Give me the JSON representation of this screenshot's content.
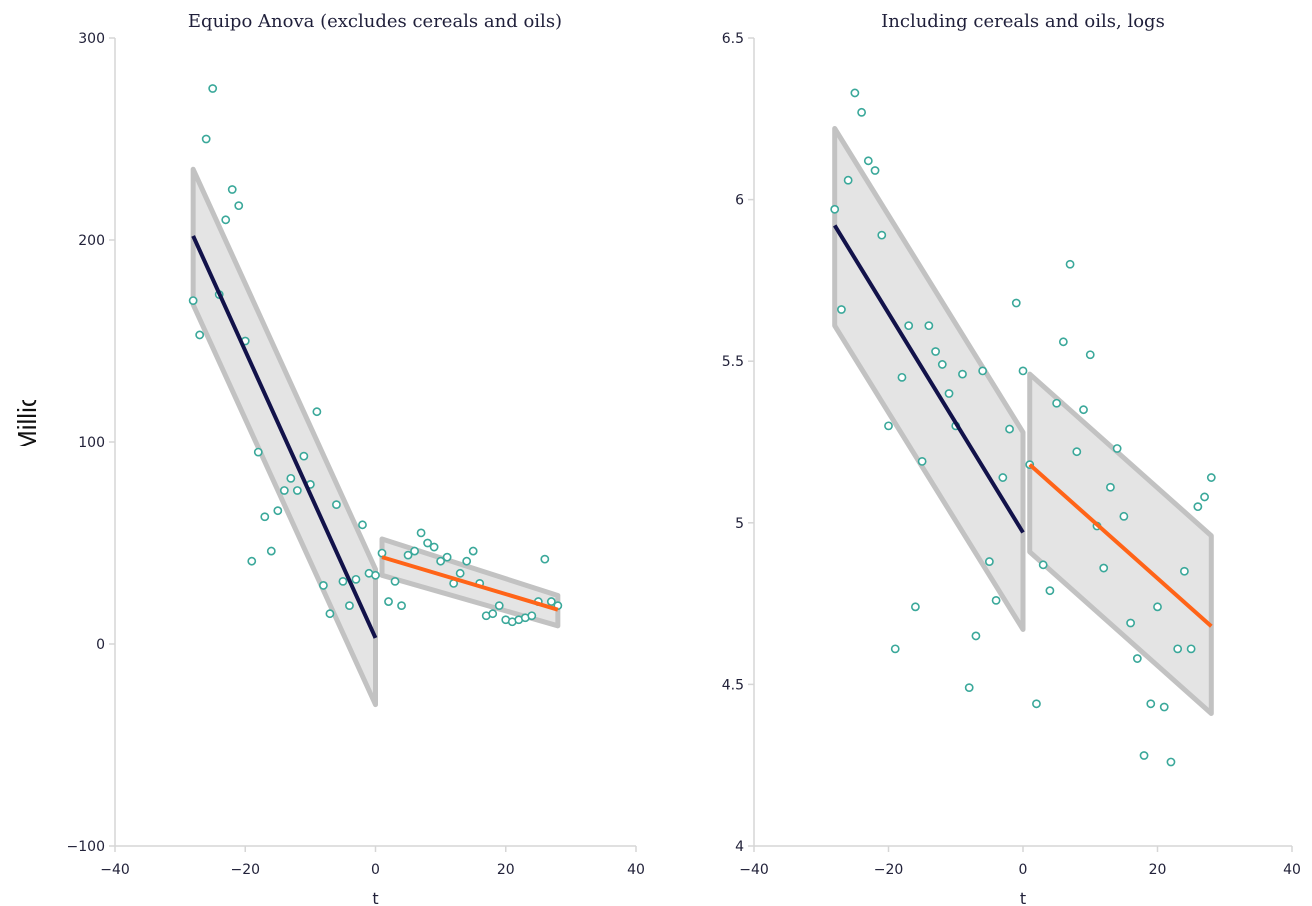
{
  "chart_data": [
    {
      "type": "scatter",
      "title": "Equipo Anova (excludes cereals and oils)",
      "xlabel": "t",
      "ylabel": "Imports (Millions of USD)",
      "xlim": [
        -40,
        40
      ],
      "ylim": [
        -100,
        300
      ],
      "xticks": [
        -40,
        -20,
        0,
        20,
        40
      ],
      "yticks": [
        -100,
        0,
        100,
        200,
        300
      ],
      "xtick_labels": [
        "−40",
        "−20",
        "0",
        "20",
        "40"
      ],
      "ytick_labels": [
        "−100",
        "0",
        "100",
        "200",
        "300"
      ],
      "points": [
        [
          -28,
          170
        ],
        [
          -27,
          153
        ],
        [
          -26,
          250
        ],
        [
          -25,
          275
        ],
        [
          -24,
          173
        ],
        [
          -23,
          210
        ],
        [
          -22,
          225
        ],
        [
          -21,
          217
        ],
        [
          -20,
          150
        ],
        [
          -19,
          41
        ],
        [
          -18,
          95
        ],
        [
          -17,
          63
        ],
        [
          -16,
          46
        ],
        [
          -15,
          66
        ],
        [
          -14,
          76
        ],
        [
          -13,
          82
        ],
        [
          -12,
          76
        ],
        [
          -11,
          93
        ],
        [
          -10,
          79
        ],
        [
          -9,
          115
        ],
        [
          -8,
          29
        ],
        [
          -7,
          15
        ],
        [
          -6,
          69
        ],
        [
          -5,
          31
        ],
        [
          -4,
          19
        ],
        [
          -3,
          32
        ],
        [
          -2,
          59
        ],
        [
          -1,
          35
        ],
        [
          0,
          34
        ],
        [
          1,
          45
        ],
        [
          2,
          21
        ],
        [
          3,
          31
        ],
        [
          4,
          19
        ],
        [
          5,
          44
        ],
        [
          6,
          46
        ],
        [
          7,
          55
        ],
        [
          8,
          50
        ],
        [
          9,
          48
        ],
        [
          10,
          41
        ],
        [
          11,
          43
        ],
        [
          12,
          30
        ],
        [
          13,
          35
        ],
        [
          14,
          41
        ],
        [
          15,
          46
        ],
        [
          16,
          30
        ],
        [
          17,
          14
        ],
        [
          18,
          15
        ],
        [
          19,
          19
        ],
        [
          20,
          12
        ],
        [
          21,
          11
        ],
        [
          22,
          12
        ],
        [
          23,
          13
        ],
        [
          24,
          14
        ],
        [
          25,
          21
        ],
        [
          26,
          42
        ],
        [
          27,
          21
        ],
        [
          28,
          19
        ]
      ],
      "fits": [
        {
          "x": [
            -28,
            0
          ],
          "y": [
            202,
            3
          ],
          "band_upper": [
            235,
            37
          ],
          "band_lower": [
            168,
            -30
          ],
          "color": "#12124a"
        },
        {
          "x": [
            1,
            28
          ],
          "y": [
            43,
            17
          ],
          "band_upper": [
            52,
            24
          ],
          "band_lower": [
            34,
            9
          ],
          "color": "#ff6418"
        }
      ],
      "grid": false
    },
    {
      "type": "scatter",
      "title": "Including cereals and oils, logs",
      "xlabel": "t",
      "ylabel": "",
      "xlim": [
        -40,
        40
      ],
      "ylim": [
        4,
        6.5
      ],
      "xticks": [
        -40,
        -20,
        0,
        20,
        40
      ],
      "yticks": [
        4,
        4.5,
        5,
        5.5,
        6,
        6.5
      ],
      "xtick_labels": [
        "−40",
        "−20",
        "0",
        "20",
        "40"
      ],
      "ytick_labels": [
        "4",
        "4.5",
        "5",
        "5.5",
        "6",
        "6.5"
      ],
      "points": [
        [
          -28,
          5.97
        ],
        [
          -27,
          5.66
        ],
        [
          -26,
          6.06
        ],
        [
          -25,
          6.33
        ],
        [
          -24,
          6.27
        ],
        [
          -23,
          6.12
        ],
        [
          -22,
          6.09
        ],
        [
          -21,
          5.89
        ],
        [
          -20,
          5.3
        ],
        [
          -19,
          4.61
        ],
        [
          -18,
          5.45
        ],
        [
          -17,
          5.61
        ],
        [
          -16,
          4.74
        ],
        [
          -15,
          5.19
        ],
        [
          -14,
          5.61
        ],
        [
          -13,
          5.53
        ],
        [
          -12,
          5.49
        ],
        [
          -11,
          5.4
        ],
        [
          -10,
          5.3
        ],
        [
          -9,
          5.46
        ],
        [
          -8,
          4.49
        ],
        [
          -7,
          4.65
        ],
        [
          -6,
          5.47
        ],
        [
          -5,
          4.88
        ],
        [
          -4,
          4.76
        ],
        [
          -3,
          5.14
        ],
        [
          -2,
          5.29
        ],
        [
          -1,
          5.68
        ],
        [
          0,
          5.47
        ],
        [
          1,
          5.18
        ],
        [
          2,
          4.44
        ],
        [
          3,
          4.87
        ],
        [
          4,
          4.79
        ],
        [
          5,
          5.37
        ],
        [
          6,
          5.56
        ],
        [
          7,
          5.8
        ],
        [
          8,
          5.22
        ],
        [
          9,
          5.35
        ],
        [
          10,
          5.52
        ],
        [
          11,
          4.99
        ],
        [
          12,
          4.86
        ],
        [
          13,
          5.11
        ],
        [
          14,
          5.23
        ],
        [
          15,
          5.02
        ],
        [
          16,
          4.69
        ],
        [
          17,
          4.58
        ],
        [
          18,
          4.28
        ],
        [
          19,
          4.44
        ],
        [
          20,
          4.74
        ],
        [
          21,
          4.43
        ],
        [
          22,
          4.26
        ],
        [
          23,
          4.61
        ],
        [
          24,
          4.85
        ],
        [
          25,
          4.61
        ],
        [
          26,
          5.05
        ],
        [
          27,
          5.08
        ],
        [
          28,
          5.14
        ]
      ],
      "fits": [
        {
          "x": [
            -28,
            0
          ],
          "y": [
            5.92,
            4.97
          ],
          "band_upper": [
            6.22,
            5.28
          ],
          "band_lower": [
            5.61,
            4.67
          ],
          "color": "#12124a"
        },
        {
          "x": [
            1,
            28
          ],
          "y": [
            5.18,
            4.68
          ],
          "band_upper": [
            5.46,
            4.96
          ],
          "band_lower": [
            4.91,
            4.41
          ],
          "color": "#ff6418"
        }
      ],
      "grid": false
    }
  ],
  "colors": {
    "point_stroke": "#3aa89a",
    "band_fill": "#e4e4e4",
    "band_stroke": "#c2c2c2"
  }
}
